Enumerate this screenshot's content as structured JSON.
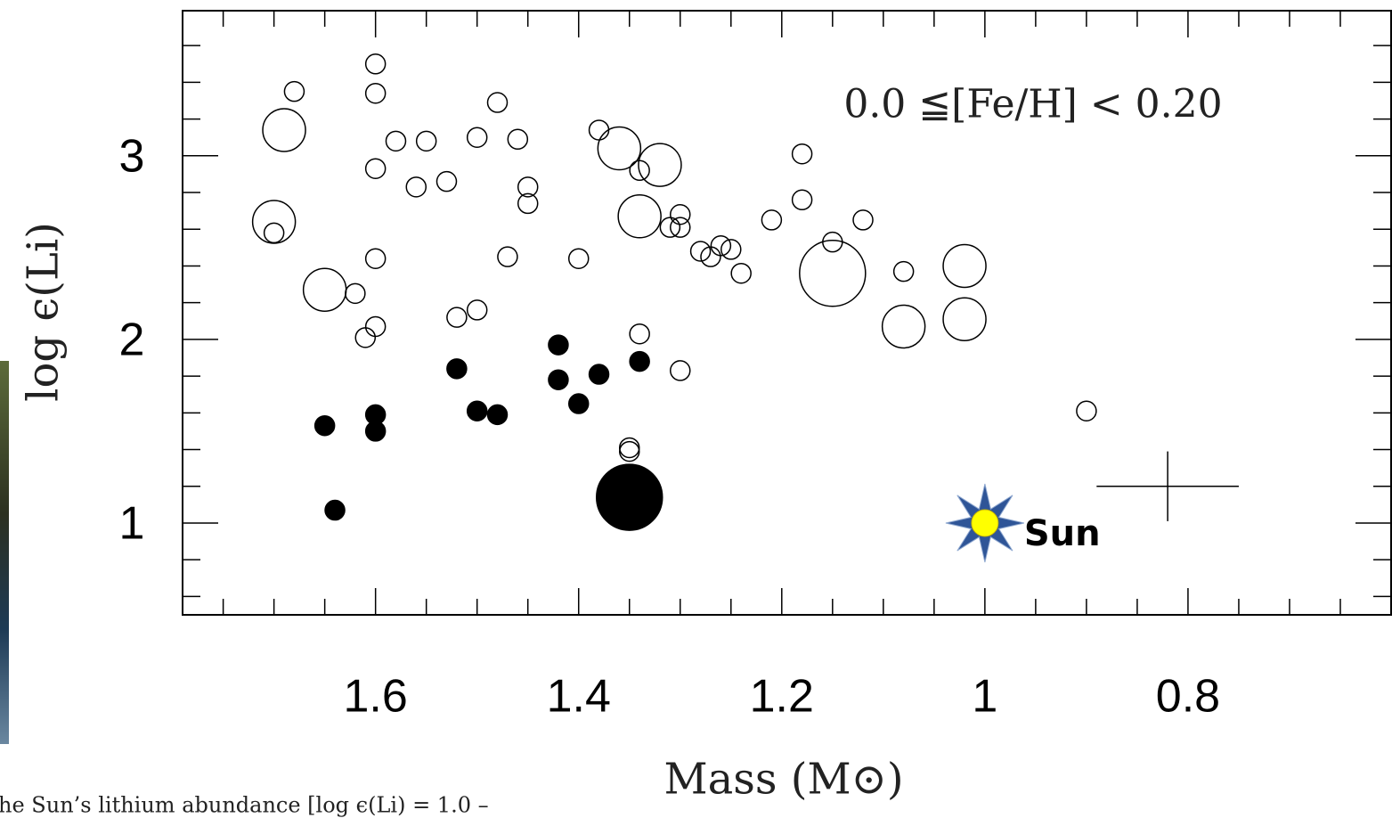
{
  "chart_data": {
    "type": "scatter",
    "x_label": "Mass (M⊙)",
    "y_label": "log ϵ(Li)",
    "xlim": [
      1.79,
      0.6
    ],
    "ylim": [
      0.5,
      3.79
    ],
    "xticks": [
      1.6,
      1.4,
      1.2,
      1,
      0.8
    ],
    "yticks": [
      1,
      2,
      3
    ],
    "xminorticks": [
      1.75,
      1.7,
      1.65,
      1.55,
      1.5,
      1.45,
      1.35,
      1.3,
      1.25,
      1.15,
      1.1,
      1.05,
      0.95,
      0.9,
      0.85,
      0.75,
      0.7,
      0.65
    ],
    "yminorticks": [
      0.6,
      0.8,
      1.2,
      1.4,
      1.6,
      1.8,
      2.2,
      2.4,
      2.6,
      2.8,
      3.2,
      3.4,
      3.6
    ],
    "series": [
      {
        "color": "#000000",
        "filled": false,
        "x": [
          1.68,
          1.69,
          1.6,
          1.6,
          1.58,
          1.55,
          1.6,
          1.56,
          1.53,
          1.5,
          1.48,
          1.46,
          1.45,
          1.45,
          1.38,
          1.36,
          1.34,
          1.32,
          1.34,
          1.31,
          1.3,
          1.3,
          1.28,
          1.27,
          1.26,
          1.25,
          1.24,
          1.7,
          1.7,
          1.65,
          1.62,
          1.6,
          1.61,
          1.6,
          1.52,
          1.5,
          1.47,
          1.4,
          1.34,
          1.3,
          1.21,
          1.18,
          1.18,
          1.15,
          1.15,
          1.12,
          1.08,
          1.02,
          1.08,
          1.02,
          0.9,
          1.35,
          1.35
        ],
        "values": [
          3.35,
          3.14,
          3.5,
          3.34,
          3.08,
          3.08,
          2.93,
          2.83,
          2.86,
          3.1,
          3.29,
          3.09,
          2.83,
          2.74,
          3.14,
          3.04,
          2.92,
          2.95,
          2.67,
          2.61,
          2.68,
          2.61,
          2.48,
          2.45,
          2.51,
          2.49,
          2.36,
          2.58,
          2.64,
          2.27,
          2.25,
          2.44,
          2.01,
          2.07,
          2.12,
          2.16,
          2.45,
          2.44,
          2.03,
          1.83,
          2.65,
          3.01,
          2.76,
          2.53,
          2.36,
          2.65,
          2.37,
          2.4,
          2.07,
          2.11,
          1.61,
          1.41,
          1.39
        ],
        "sizes": [
          1,
          2,
          1,
          1,
          1,
          1,
          1,
          1,
          1,
          1,
          1,
          1,
          1,
          1,
          1,
          2,
          1,
          2,
          2,
          1,
          1,
          1,
          1,
          1,
          1,
          1,
          1,
          1,
          2,
          2,
          1,
          1,
          1,
          1,
          1,
          1,
          1,
          1,
          1,
          1,
          1,
          1,
          1,
          1,
          3,
          1,
          1,
          2,
          2,
          2,
          1,
          1,
          1
        ]
      },
      {
        "color": "#000000",
        "filled": true,
        "x": [
          1.65,
          1.6,
          1.6,
          1.64,
          1.52,
          1.5,
          1.48,
          1.42,
          1.42,
          1.4,
          1.38,
          1.34,
          1.35
        ],
        "values": [
          1.53,
          1.59,
          1.5,
          1.07,
          1.84,
          1.61,
          1.59,
          1.97,
          1.78,
          1.65,
          1.81,
          1.88,
          1.14
        ],
        "sizes": [
          1,
          1,
          1,
          1,
          1,
          1,
          1,
          1,
          1,
          1,
          1,
          1,
          3
        ]
      }
    ],
    "error_bar": {
      "x": 0.82,
      "y": 1.2,
      "xerr": 0.07,
      "yerr": 0.19
    },
    "annotations": [
      {
        "text": "0.0 ≦[Fe/H] < 0.20"
      },
      {
        "text": "Sun",
        "x": 1,
        "y": 1
      }
    ],
    "caption": "he Sun’s lithium abundance [log ϵ(Li) = 1.0 –"
  }
}
